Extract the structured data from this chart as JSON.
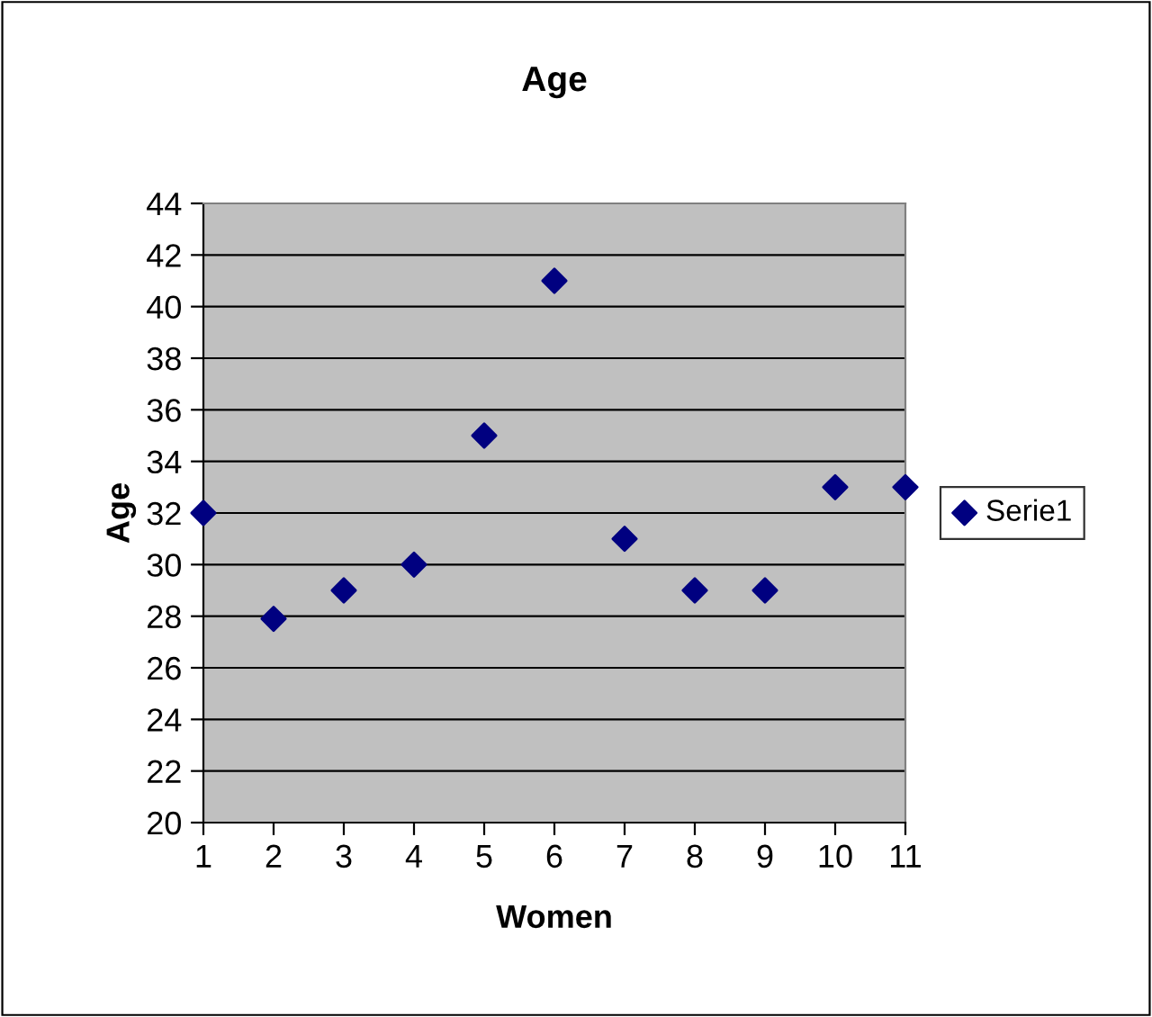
{
  "chart_data": {
    "type": "scatter",
    "title": "Age",
    "xlabel": "Women",
    "ylabel": "Age",
    "x": [
      1,
      2,
      3,
      4,
      5,
      6,
      7,
      8,
      9,
      10,
      11
    ],
    "series": [
      {
        "name": "Serie1",
        "color": "#000080",
        "values": [
          32,
          27.9,
          29,
          30,
          35,
          41,
          31,
          29,
          29,
          33,
          33
        ]
      }
    ],
    "xlim": [
      1,
      11
    ],
    "xticks": [
      1,
      2,
      3,
      4,
      5,
      6,
      7,
      8,
      9,
      10,
      11
    ],
    "ylim": [
      20,
      44
    ],
    "yticks": [
      20,
      22,
      24,
      26,
      28,
      30,
      32,
      34,
      36,
      38,
      40,
      42,
      44
    ],
    "grid": "y",
    "legend": "right",
    "marker": "diamond"
  }
}
